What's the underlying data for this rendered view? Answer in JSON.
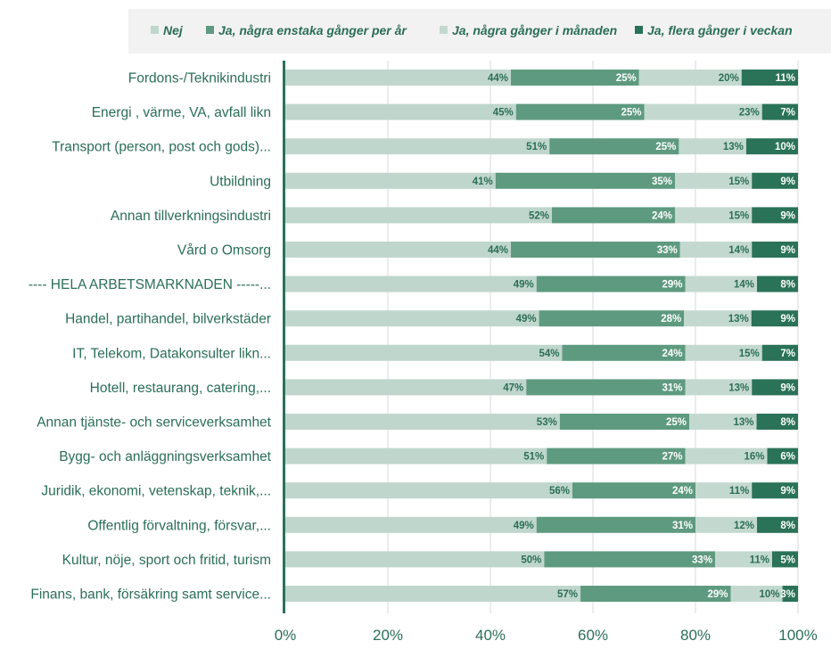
{
  "chart_data": {
    "type": "bar",
    "orientation": "horizontal",
    "stacked": true,
    "percent_stacked": true,
    "legend_position": "top",
    "grid": true,
    "xlim": [
      0,
      100
    ],
    "x_ticks": [
      "0%",
      "20%",
      "40%",
      "60%",
      "80%",
      "100%"
    ],
    "categories": [
      "Fordons-/Teknikindustri",
      "Energi , värme, VA, avfall likn",
      "Transport (person, post och gods)...",
      "Utbildning",
      "Annan tillverkningsindustri",
      "Vård o Omsorg",
      "----    HELA ARBETSMARKNADEN -----...",
      "Handel, partihandel, bilverkstäder",
      "IT, Telekom, Datakonsulter likn...",
      "Hotell, restaurang, catering,...",
      "Annan tjänste- och serviceverksamhet",
      "Bygg- och anläggningsverksamhet",
      "Juridik, ekonomi, vetenskap, teknik,...",
      "Offentlig förvaltning, försvar,...",
      "Kultur, nöje, sport och fritid, turism",
      "Finans, bank, försäkring samt service..."
    ],
    "series": [
      {
        "name": "Nej",
        "color": "#bfd6cc",
        "label_color": "#2b6e58",
        "values": [
          44,
          45,
          51,
          41,
          52,
          44,
          49,
          49,
          54,
          47,
          53,
          51,
          56,
          49,
          50,
          57
        ],
        "labels": [
          "44%",
          "45%",
          "51%",
          "41%",
          "52%",
          "44%",
          "49%",
          "49%",
          "54%",
          "47%",
          "53%",
          "51%",
          "56%",
          "49%",
          "50%",
          "57%"
        ]
      },
      {
        "name": "Ja, några enstaka gånger per år",
        "color": "#5e9a7f",
        "label_color": "#ffffff",
        "values": [
          25,
          25,
          25,
          35,
          24,
          33,
          29,
          28,
          24,
          31,
          25,
          27,
          24,
          31,
          33,
          29
        ],
        "labels": [
          "25%",
          "25%",
          "25%",
          "35%",
          "24%",
          "33%",
          "29%",
          "28%",
          "24%",
          "31%",
          "25%",
          "27%",
          "24%",
          "31%",
          "33%",
          "29%"
        ]
      },
      {
        "name": "Ja, några gånger i månaden",
        "color": "#c3d9cf",
        "label_color": "#2b6e58",
        "values": [
          20,
          23,
          13,
          15,
          15,
          14,
          14,
          13,
          15,
          13,
          13,
          16,
          11,
          12,
          11,
          10
        ],
        "labels": [
          "20%",
          "23%",
          "13%",
          "15%",
          "15%",
          "14%",
          "14%",
          "13%",
          "15%",
          "13%",
          "13%",
          "16%",
          "11%",
          "12%",
          "11%",
          "10%"
        ]
      },
      {
        "name": "Ja, flera gånger i veckan",
        "color": "#2a7258",
        "label_color": "#ffffff",
        "values": [
          11,
          7,
          10,
          9,
          9,
          9,
          8,
          9,
          7,
          9,
          8,
          6,
          9,
          8,
          5,
          3
        ],
        "labels": [
          "11%",
          "7%",
          "10%",
          "9%",
          "9%",
          "9%",
          "8%",
          "9%",
          "7%",
          "9%",
          "8%",
          "6%",
          "9%",
          "8%",
          "5%",
          "3%"
        ]
      }
    ]
  }
}
